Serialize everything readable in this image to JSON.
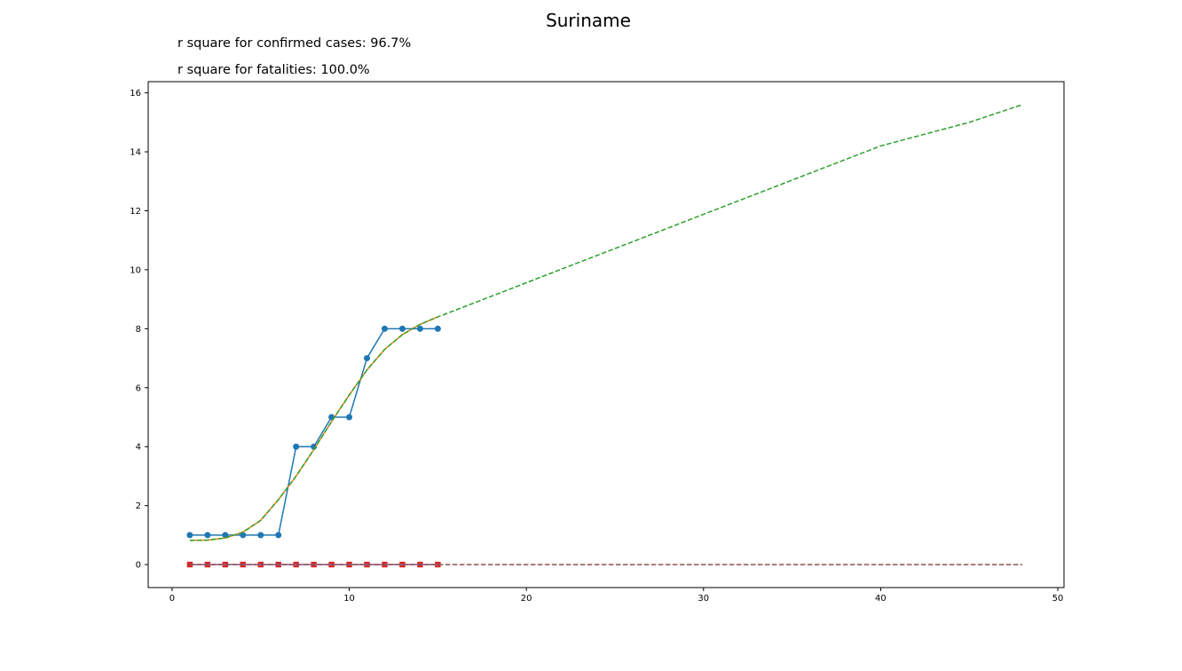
{
  "chart_data": {
    "type": "line",
    "title": "Suriname",
    "annotations": [
      "r square for confirmed cases: 96.7%",
      "r square for fatalities: 100.0%"
    ],
    "xlabel": "",
    "ylabel": "",
    "xlim": [
      -1.35,
      50.35
    ],
    "ylim": [
      -0.78,
      16.38
    ],
    "xticks": [
      0,
      10,
      20,
      30,
      40,
      50
    ],
    "yticks": [
      0,
      2,
      4,
      6,
      8,
      10,
      12,
      14,
      16
    ],
    "grid": false,
    "series": [
      {
        "style": "line-circle-markers",
        "color": "#1f77b4",
        "x": [
          1,
          2,
          3,
          4,
          5,
          6,
          7,
          8,
          9,
          10,
          11,
          12,
          13,
          14,
          15
        ],
        "y": [
          1,
          1,
          1,
          1,
          1,
          1,
          4,
          4,
          5,
          5,
          7,
          8,
          8,
          8,
          8
        ]
      },
      {
        "style": "line",
        "color": "#ff7f0e",
        "x": [
          1,
          2,
          3,
          4,
          5,
          6,
          7,
          8,
          9,
          10,
          11,
          12,
          13,
          14,
          15
        ],
        "y": [
          0.82,
          0.83,
          0.9,
          1.1,
          1.5,
          2.2,
          3.0,
          3.9,
          4.85,
          5.75,
          6.6,
          7.3,
          7.8,
          8.15,
          8.4
        ]
      },
      {
        "style": "dashed",
        "color": "#2ca02c",
        "x": [
          1,
          2,
          3,
          4,
          5,
          6,
          7,
          8,
          9,
          10,
          11,
          12,
          13,
          14,
          15,
          16,
          20,
          25,
          30,
          35,
          40,
          45,
          48
        ],
        "y": [
          0.82,
          0.83,
          0.9,
          1.1,
          1.5,
          2.2,
          3.0,
          3.9,
          4.85,
          5.75,
          6.6,
          7.3,
          7.8,
          8.15,
          8.4,
          8.63,
          9.56,
          10.72,
          11.88,
          13.04,
          14.2,
          15.0,
          15.6
        ]
      },
      {
        "style": "line-square-markers",
        "color": "#d62728",
        "x": [
          1,
          2,
          3,
          4,
          5,
          6,
          7,
          8,
          9,
          10,
          11,
          12,
          13,
          14,
          15
        ],
        "y": [
          0,
          0,
          0,
          0,
          0,
          0,
          0,
          0,
          0,
          0,
          0,
          0,
          0,
          0,
          0
        ]
      },
      {
        "style": "line",
        "color": "#9467bd",
        "x": [
          1,
          15
        ],
        "y": [
          0,
          0
        ]
      },
      {
        "style": "dashed",
        "color": "#8c564b",
        "x": [
          1,
          48
        ],
        "y": [
          0,
          0
        ]
      }
    ]
  }
}
